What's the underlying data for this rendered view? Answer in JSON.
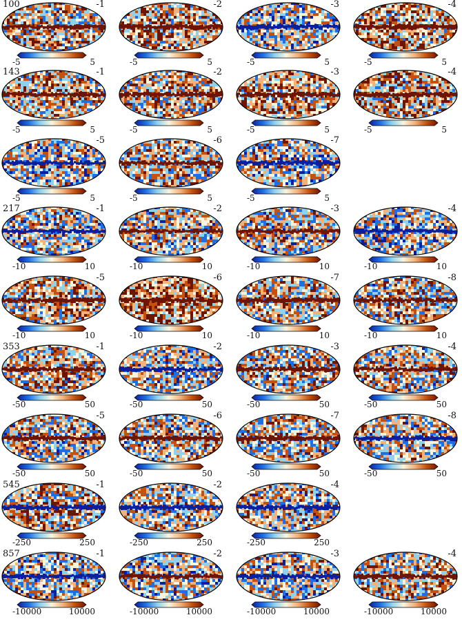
{
  "colormap": [
    "#0a1f9e",
    "#1e6fe6",
    "#8fd2ee",
    "#fbf4dc",
    "#f3b27a",
    "#c4520e",
    "#6e1402"
  ],
  "rows": [
    {
      "freq": "100",
      "range": [
        "-5",
        "5"
      ],
      "panels": [
        {
          "det": "-1",
          "tint": 0.2,
          "band": 1.0
        },
        {
          "det": "-2",
          "tint": 0.3,
          "band": 1.0
        },
        {
          "det": "-3",
          "tint": -0.1,
          "band": -1.0
        },
        {
          "det": "-4",
          "tint": 0.35,
          "band": 1.0
        }
      ]
    },
    {
      "freq": "143",
      "range": [
        "-5",
        "5"
      ],
      "panels": [
        {
          "det": "-1",
          "tint": 0.25,
          "band": 1.0
        },
        {
          "det": "-2",
          "tint": 0.2,
          "band": 1.0
        },
        {
          "det": "-3",
          "tint": 0.3,
          "band": 1.0
        },
        {
          "det": "-4",
          "tint": 0.25,
          "band": 1.0
        }
      ]
    },
    {
      "freq": "",
      "range": [
        "-5",
        "5"
      ],
      "panels": [
        {
          "det": "-5",
          "tint": -0.05,
          "band": -0.6
        },
        {
          "det": "-6",
          "tint": 0.1,
          "band": 0.7
        },
        {
          "det": "-7",
          "tint": -0.05,
          "band": -0.7
        }
      ]
    },
    {
      "freq": "217",
      "range": [
        "-10",
        "10"
      ],
      "panels": [
        {
          "det": "-1",
          "tint": 0.0,
          "band": -0.6
        },
        {
          "det": "-2",
          "tint": 0.0,
          "band": 0.6
        },
        {
          "det": "-3",
          "tint": 0.0,
          "band": 0.6
        },
        {
          "det": "-4",
          "tint": -0.1,
          "band": -0.6
        }
      ]
    },
    {
      "freq": "",
      "range": [
        "-10",
        "10"
      ],
      "panels": [
        {
          "det": "-5",
          "tint": 0.2,
          "band": 1.0
        },
        {
          "det": "-6",
          "tint": 0.45,
          "band": 1.0
        },
        {
          "det": "-7",
          "tint": 0.15,
          "band": 1.0
        },
        {
          "det": "-8",
          "tint": 0.1,
          "band": 1.0
        }
      ]
    },
    {
      "freq": "353",
      "range": [
        "-50",
        "50"
      ],
      "panels": [
        {
          "det": "-1",
          "tint": 0.1,
          "band": 1.0
        },
        {
          "det": "-2",
          "tint": 0.0,
          "band": -0.7
        },
        {
          "det": "-3",
          "tint": 0.1,
          "band": 1.0
        },
        {
          "det": "-4",
          "tint": 0.1,
          "band": 1.0
        }
      ]
    },
    {
      "freq": "",
      "range": [
        "-50",
        "50"
      ],
      "panels": [
        {
          "det": "-5",
          "tint": 0.05,
          "band": 0.9
        },
        {
          "det": "-6",
          "tint": 0.05,
          "band": 0.9
        },
        {
          "det": "-7",
          "tint": 0.1,
          "band": 1.0
        },
        {
          "det": "-8",
          "tint": 0.05,
          "band": -0.8
        }
      ]
    },
    {
      "freq": "545",
      "range": [
        "-250",
        "250"
      ],
      "panels": [
        {
          "det": "-1",
          "tint": 0.25,
          "band": -1.0
        },
        {
          "det": "-2",
          "tint": 0.1,
          "band": -1.0
        },
        {
          "det": "-4",
          "tint": 0.0,
          "band": -1.0
        }
      ]
    },
    {
      "freq": "857",
      "range": [
        "-10000",
        "10000"
      ],
      "panels": [
        {
          "det": "-1",
          "tint": 0.0,
          "band": -1.0
        },
        {
          "det": "-2",
          "tint": -0.1,
          "band": 0.8
        },
        {
          "det": "-3",
          "tint": 0.0,
          "band": -0.8
        },
        {
          "det": "-4",
          "tint": 0.15,
          "band": 1.0
        }
      ]
    }
  ]
}
